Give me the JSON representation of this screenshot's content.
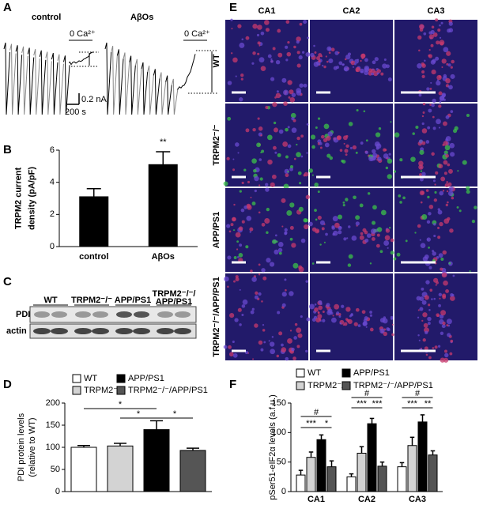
{
  "panel_labels": [
    "A",
    "B",
    "C",
    "D",
    "E",
    "F"
  ],
  "panel_a": {
    "conditions": [
      "control",
      "AβOs"
    ],
    "calcium_label": [
      "0 Ca²⁺",
      "0 Ca²⁺"
    ],
    "scale_current": "0.2 nA",
    "scale_time": "200 s"
  },
  "panel_c": {
    "lanes": [
      [
        "WT"
      ],
      [
        "TRPM2⁻/⁻"
      ],
      [
        "APP/PS1"
      ],
      [
        "TRPM2⁻/⁻/",
        "APP/PS1"
      ]
    ],
    "rows": [
      "PDI",
      "actin"
    ]
  },
  "panel_e": {
    "columns": [
      "CA1",
      "CA2",
      "CA3"
    ],
    "rows": [
      "WT",
      "TRPM2⁻/⁻",
      "APP/PS1",
      "TRPM2⁻/⁻/APP/PS1"
    ]
  },
  "chart_data": [
    {
      "type": "bar",
      "ylabel": [
        "TRPM2 current",
        "density (pA/pF)"
      ],
      "categories": [
        "control",
        "AβOs"
      ],
      "values": [
        3.1,
        5.1
      ],
      "errors": [
        0.5,
        0.8
      ],
      "color": "#000000",
      "ylim": [
        0,
        6
      ],
      "yticks": [
        0,
        2,
        4,
        6
      ],
      "annotations": [
        "**"
      ]
    },
    {
      "type": "bar",
      "ylabel": [
        "PDI protein levels",
        "(relative to WT)"
      ],
      "series": [
        {
          "name": "WT",
          "color": "#ffffff",
          "values": [
            100
          ],
          "errors": [
            4
          ]
        },
        {
          "name": "TRPM2⁻/⁻",
          "color": "#d3d3d3",
          "values": [
            103
          ],
          "errors": [
            6
          ]
        },
        {
          "name": "APP/PS1",
          "color": "#000000",
          "values": [
            140
          ],
          "errors": [
            20
          ]
        },
        {
          "name": "TRPM2⁻/⁻/APP/PS1",
          "color": "#555555",
          "values": [
            93
          ],
          "errors": [
            5
          ]
        }
      ],
      "ylim": [
        0,
        200
      ],
      "yticks": [
        0,
        50,
        100,
        150,
        200
      ],
      "annotations": [
        "*",
        "*",
        "*"
      ]
    },
    {
      "type": "bar",
      "ylabel": [
        "pSer51-eIF2α levels (a.f.u.)"
      ],
      "categories": [
        "CA1",
        "CA2",
        "CA3"
      ],
      "series": [
        {
          "name": "WT",
          "color": "#ffffff",
          "values": [
            28,
            25,
            42
          ],
          "errors": [
            8,
            5,
            7
          ]
        },
        {
          "name": "TRPM2⁻/⁻",
          "color": "#d3d3d3",
          "values": [
            58,
            65,
            78
          ],
          "errors": [
            9,
            11,
            14
          ]
        },
        {
          "name": "APP/PS1",
          "color": "#000000",
          "values": [
            88,
            115,
            118
          ],
          "errors": [
            8,
            9,
            12
          ]
        },
        {
          "name": "TRPM2⁻/⁻/APP/PS1",
          "color": "#555555",
          "values": [
            42,
            43,
            62
          ],
          "errors": [
            10,
            7,
            7
          ]
        }
      ],
      "ylim": [
        0,
        150
      ],
      "yticks": [
        0,
        50,
        100,
        150
      ],
      "annotations": [
        "#",
        "***",
        "*",
        "#",
        "***",
        "***",
        "#",
        "***",
        "**"
      ]
    }
  ]
}
